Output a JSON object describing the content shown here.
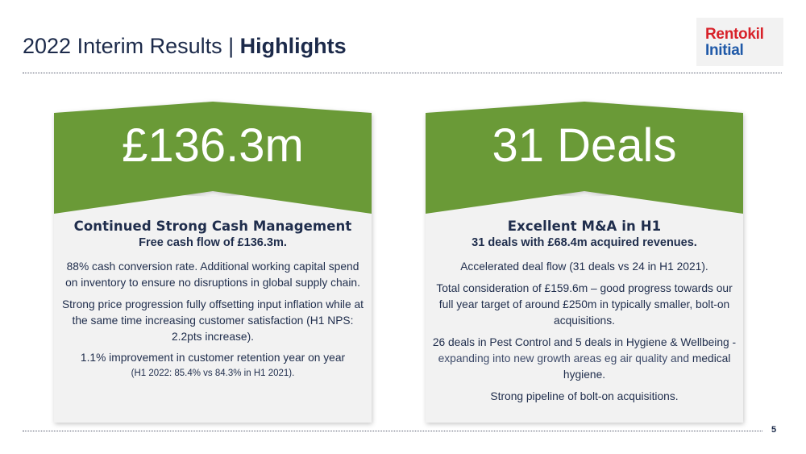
{
  "title": {
    "regular": "2022 Interim Results | ",
    "bold": "Highlights"
  },
  "logo": {
    "line1": "Rentokil",
    "line2": "Initial",
    "color_red": "#d8222a",
    "color_blue": "#1f59a8"
  },
  "colors": {
    "green": "#6a9a37",
    "card": "#f2f2f2",
    "navy": "#1f2d4c"
  },
  "cards": [
    {
      "big": "£136.3m",
      "heading": "Continued Strong Cash Management",
      "subheading": "Free cash flow of £136.3m.",
      "p1": "88% cash conversion rate.  Additional working capital spend on inventory to ensure no disruptions in global supply chain.",
      "p2": "Strong price progression fully offsetting input inflation while at the same time increasing customer satisfaction (H1 NPS: 2.2pts increase).",
      "p3": "1.1% improvement in customer retention year on year",
      "p3_note": "(H1 2022: 85.4% vs 84.3% in H1 2021)."
    },
    {
      "big": "31 Deals",
      "heading": "Excellent M&A in H1",
      "subheading": "31 deals with £68.4m acquired revenues.",
      "p1": "Accelerated deal flow (31 deals vs 24 in H1 2021).",
      "p2": "Total consideration of £159.6m – good progress towards our full year target of around £250m in typically smaller, bolt-on acquisitions.",
      "p3a": "26 deals in Pest Control and 5 deals in Hygiene & Wellbeing - ",
      "p3b": "expanding into new growth areas eg air quality and",
      "p3c": " medical hygiene.",
      "p4": "Strong pipeline of bolt-on acquisitions."
    }
  ],
  "page_number": "5"
}
